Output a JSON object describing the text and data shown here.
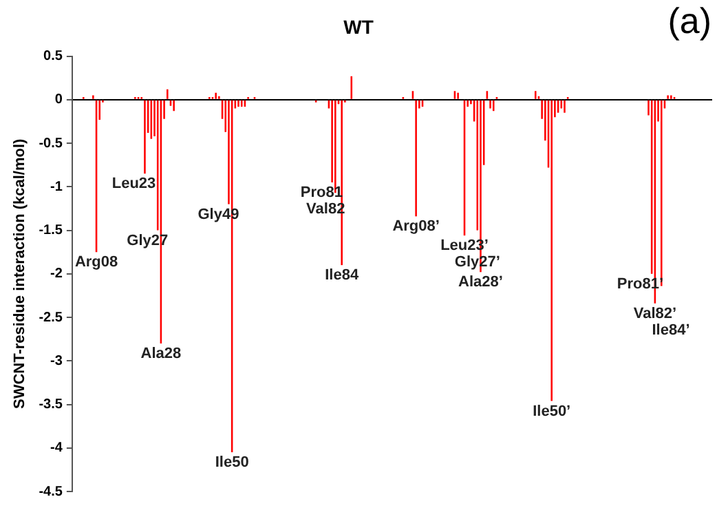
{
  "chart_data": {
    "type": "bar",
    "title": "WT",
    "ylabel": "SWCNT-residue interaction (kcal/mol)",
    "annotations": [
      "(a)"
    ],
    "categories": [
      null,
      null,
      null,
      null,
      null,
      null,
      null,
      null,
      null,
      null,
      null,
      null,
      null,
      null,
      null,
      null,
      null,
      null,
      null,
      null,
      null,
      null,
      null,
      null,
      null,
      null,
      null,
      null,
      null,
      null,
      null,
      null,
      null,
      null,
      null,
      null,
      null,
      null,
      null,
      null,
      null,
      null,
      null,
      null,
      null,
      null,
      null,
      null,
      null,
      null,
      null,
      null,
      null,
      null,
      null,
      null,
      null,
      null,
      null,
      null,
      null,
      null,
      null,
      null,
      null,
      null,
      null,
      null,
      null,
      null,
      null,
      null,
      null,
      null,
      null,
      null,
      null,
      null,
      null,
      null,
      null,
      null,
      null,
      null,
      null,
      null,
      null,
      null,
      null,
      null,
      null,
      null,
      null,
      null,
      null,
      null,
      null,
      null,
      null,
      null,
      null,
      null,
      null,
      null,
      null,
      null,
      null,
      null,
      null,
      null,
      null,
      null,
      null,
      null,
      null,
      null,
      null,
      null,
      null,
      null,
      null,
      null,
      null,
      null,
      null,
      null,
      null,
      null,
      null,
      null,
      null,
      null,
      null,
      null,
      null,
      null,
      null,
      null,
      null,
      null,
      null,
      null,
      null,
      null,
      null,
      null,
      null,
      null,
      null,
      null,
      null,
      null,
      null,
      null,
      null,
      null,
      null,
      null,
      null,
      null,
      null,
      null,
      null,
      null,
      null,
      null,
      null,
      null,
      null,
      null,
      null,
      null,
      null,
      null,
      null,
      null,
      null,
      null,
      null,
      null,
      null,
      null,
      null,
      null,
      null,
      null,
      null,
      null,
      null,
      null,
      null,
      null,
      null,
      null,
      null,
      null,
      null,
      null
    ],
    "ylim": [
      -4.5,
      0.5
    ],
    "yticks": [
      0.5,
      0,
      -0.5,
      -1,
      -1.5,
      -2,
      -2.5,
      -3,
      -3.5,
      -4,
      -4.5
    ],
    "tick_labels": "y",
    "series": [
      {
        "color": "#ff0000",
        "values": [
          0,
          0,
          0,
          0.03,
          0,
          0,
          0.05,
          -1.75,
          -0.23,
          -0.03,
          0,
          0,
          0,
          0,
          0,
          0,
          0,
          0,
          0,
          0.03,
          0.03,
          0.03,
          -0.85,
          -0.38,
          -0.45,
          -0.42,
          -1.5,
          -2.8,
          -0.22,
          0.12,
          -0.07,
          -0.13,
          0,
          0,
          0,
          0,
          0,
          0,
          0,
          0,
          0,
          0,
          0.03,
          0.03,
          0.08,
          0.04,
          -0.22,
          -0.37,
          -1.2,
          -4.05,
          -0.1,
          -0.08,
          -0.08,
          -0.08,
          0.03,
          0,
          0.03,
          0,
          0,
          0,
          0,
          0,
          0,
          0,
          0,
          0,
          0,
          0,
          0,
          0,
          0,
          0,
          0,
          0,
          0,
          -0.03,
          0,
          0,
          0,
          -0.1,
          -0.95,
          -1.07,
          -0.05,
          -1.9,
          -0.03,
          0,
          0.27,
          0,
          0,
          0,
          0,
          0,
          0,
          0,
          0,
          0,
          0,
          0,
          0,
          0,
          0,
          0,
          0.03,
          0,
          0,
          0.1,
          -1.34,
          -0.1,
          -0.08,
          0,
          0,
          0,
          0,
          0,
          0,
          0,
          0,
          0,
          0.1,
          0.08,
          0,
          -1.56,
          -0.08,
          -0.05,
          -0.25,
          -1.5,
          -1.98,
          -0.75,
          0.1,
          -0.1,
          -0.13,
          0.03,
          0,
          0,
          0,
          0,
          0,
          0,
          0,
          0,
          0,
          0,
          0,
          0.1,
          0.04,
          -0.22,
          -0.47,
          -0.78,
          -3.46,
          -0.2,
          -0.15,
          -0.1,
          -0.15,
          0.03,
          0,
          0,
          0,
          0,
          0,
          0,
          0,
          0,
          0,
          0,
          0,
          0,
          0,
          0,
          0,
          0,
          0,
          0,
          0,
          0,
          0,
          0,
          0,
          0,
          -0.18,
          -2.0,
          -2.34,
          -0.25,
          -2.14,
          -0.1,
          0.05,
          0.05,
          0.03,
          0,
          0,
          0,
          0,
          0,
          0,
          0,
          0,
          0,
          0,
          0
        ],
        "value_labels": [
          null,
          null,
          null,
          null,
          null,
          null,
          null,
          "Arg08",
          null,
          null,
          null,
          null,
          null,
          null,
          null,
          null,
          null,
          null,
          null,
          null,
          null,
          null,
          "Leu23",
          null,
          null,
          null,
          "Gly27",
          "Ala28",
          null,
          null,
          null,
          null,
          null,
          null,
          null,
          null,
          null,
          null,
          null,
          null,
          null,
          null,
          null,
          null,
          null,
          null,
          null,
          null,
          "Gly49",
          "Ile50",
          null,
          null,
          null,
          null,
          null,
          null,
          null,
          null,
          null,
          null,
          null,
          null,
          null,
          null,
          null,
          null,
          null,
          null,
          null,
          null,
          null,
          null,
          null,
          null,
          null,
          null,
          null,
          null,
          null,
          null,
          "Pro81",
          "Val82",
          null,
          "Ile84",
          null,
          null,
          null,
          null,
          null,
          null,
          null,
          null,
          null,
          null,
          null,
          null,
          null,
          null,
          null,
          null,
          null,
          null,
          null,
          null,
          null,
          null,
          "Arg08’",
          null,
          null,
          null,
          null,
          null,
          null,
          null,
          null,
          null,
          null,
          null,
          null,
          null,
          null,
          "Leu23’",
          null,
          null,
          null,
          "Gly27’",
          "Ala28’",
          null,
          null,
          null,
          null,
          null,
          null,
          null,
          null,
          null,
          null,
          null,
          null,
          null,
          null,
          null,
          null,
          null,
          null,
          null,
          null,
          null,
          "Ile50’",
          null,
          null,
          null,
          null,
          null,
          null,
          null,
          null,
          null,
          null,
          null,
          null,
          null,
          null,
          null,
          null,
          null,
          null,
          null,
          null,
          null,
          null,
          null,
          null,
          null,
          null,
          null,
          null,
          null,
          null,
          "Pro81’",
          "Val82’",
          null,
          "Ile84’",
          null,
          null,
          null,
          null,
          null,
          null,
          null,
          null,
          null,
          null,
          null,
          null,
          null,
          null,
          null
        ]
      }
    ]
  }
}
